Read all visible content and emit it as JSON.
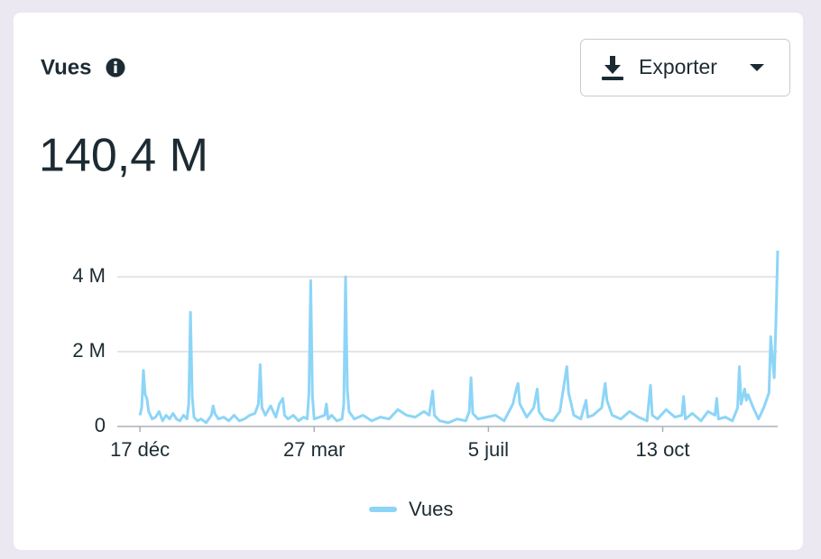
{
  "header": {
    "title": "Vues",
    "button": "Exporter",
    "total": "140,4 M"
  },
  "chart_data": {
    "type": "line",
    "x": [
      0,
      1,
      2,
      3,
      4,
      5,
      7,
      9,
      11,
      13,
      15,
      17,
      19,
      21,
      23,
      25,
      27,
      28,
      29,
      30,
      31,
      33,
      35,
      38,
      41,
      42,
      43,
      45,
      48,
      51,
      54,
      57,
      60,
      63,
      66,
      68,
      69,
      70,
      72,
      75,
      78,
      80,
      82,
      83,
      85,
      88,
      91,
      94,
      96,
      97,
      98,
      99,
      100,
      103,
      106,
      107,
      108,
      110,
      113,
      116,
      117,
      118,
      119,
      120,
      123,
      128,
      133,
      138,
      143,
      148,
      153,
      158,
      163,
      166,
      168,
      169,
      172,
      177,
      182,
      187,
      189,
      190,
      191,
      194,
      199,
      204,
      209,
      214,
      216,
      217,
      218,
      222,
      226,
      228,
      229,
      232,
      237,
      241,
      244,
      245,
      246,
      249,
      253,
      256,
      257,
      260,
      265,
      267,
      268,
      271,
      276,
      281,
      286,
      291,
      293,
      294,
      297,
      302,
      307,
      311,
      312,
      313,
      317,
      322,
      326,
      330,
      331,
      332,
      336,
      340,
      343,
      344,
      345,
      347,
      348,
      349,
      352,
      355,
      358,
      361,
      362,
      363,
      364,
      365,
      366
    ],
    "series": [
      {
        "name": "Vues",
        "color": "#8dd5f7",
        "values": [
          0.3,
          0.5,
          1.5,
          0.85,
          0.75,
          0.4,
          0.2,
          0.25,
          0.4,
          0.15,
          0.3,
          0.2,
          0.35,
          0.2,
          0.15,
          0.3,
          0.2,
          0.6,
          3.05,
          0.8,
          0.25,
          0.15,
          0.2,
          0.1,
          0.3,
          0.55,
          0.35,
          0.2,
          0.25,
          0.15,
          0.3,
          0.15,
          0.2,
          0.3,
          0.35,
          0.6,
          1.65,
          0.5,
          0.3,
          0.55,
          0.25,
          0.6,
          0.75,
          0.3,
          0.2,
          0.3,
          0.15,
          0.25,
          0.2,
          0.9,
          3.9,
          0.8,
          0.2,
          0.25,
          0.3,
          0.6,
          0.2,
          0.3,
          0.15,
          0.2,
          0.6,
          4.0,
          1.0,
          0.4,
          0.2,
          0.3,
          0.15,
          0.25,
          0.2,
          0.45,
          0.3,
          0.25,
          0.4,
          0.3,
          0.95,
          0.3,
          0.15,
          0.1,
          0.2,
          0.15,
          0.4,
          1.3,
          0.35,
          0.2,
          0.25,
          0.3,
          0.15,
          0.6,
          1.0,
          1.15,
          0.6,
          0.25,
          0.5,
          1.0,
          0.4,
          0.2,
          0.15,
          0.4,
          1.3,
          1.6,
          0.9,
          0.3,
          0.2,
          0.7,
          0.25,
          0.3,
          0.5,
          1.15,
          0.7,
          0.3,
          0.2,
          0.4,
          0.25,
          0.15,
          1.1,
          0.3,
          0.2,
          0.45,
          0.25,
          0.3,
          0.8,
          0.2,
          0.35,
          0.15,
          0.4,
          0.3,
          0.75,
          0.2,
          0.25,
          0.15,
          0.5,
          1.6,
          0.6,
          1.0,
          0.7,
          0.85,
          0.5,
          0.2,
          0.5,
          0.9,
          2.4,
          1.8,
          1.3,
          2.8,
          4.7
        ]
      }
    ],
    "xlim": [
      -13,
      366
    ],
    "xticks": [
      {
        "value": 0,
        "label": "17 déc"
      },
      {
        "value": 100,
        "label": "27 mar"
      },
      {
        "value": 200,
        "label": "5 juil"
      },
      {
        "value": 300,
        "label": "13 oct"
      }
    ],
    "ylim": [
      0,
      5
    ],
    "yticks": [
      0,
      {
        "value": 2,
        "label": "2 M"
      },
      {
        "value": 4,
        "label": "4 M"
      }
    ],
    "grid": true,
    "legend": "bottom"
  }
}
